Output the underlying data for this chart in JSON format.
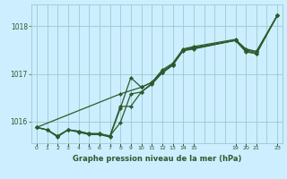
{
  "background_color": "#cceeff",
  "grid_color": "#99cccc",
  "line_color": "#2d5a2d",
  "marker_color": "#2d5a2d",
  "title": "Graphe pression niveau de la mer (hPa)",
  "title_color": "#2d5a2d",
  "xlim": [
    -0.5,
    23.5
  ],
  "ylim": [
    1015.55,
    1018.45
  ],
  "yticks": [
    1016,
    1017,
    1018
  ],
  "xtick_positions": [
    0,
    1,
    2,
    3,
    4,
    5,
    6,
    7,
    8,
    9,
    10,
    11,
    12,
    13,
    14,
    15,
    19,
    20,
    21,
    23
  ],
  "xtick_labels": [
    "0",
    "1",
    "2",
    "3",
    "4",
    "5",
    "6",
    "7",
    "8",
    "9",
    "10",
    "11",
    "12",
    "13",
    "14",
    "15",
    "19",
    "20",
    "21",
    "23"
  ],
  "lines": [
    {
      "x": [
        0,
        1,
        2,
        3,
        4,
        5,
        6,
        7,
        8,
        9,
        10,
        11,
        12,
        13,
        14,
        15,
        19,
        20,
        21,
        23
      ],
      "y": [
        1015.88,
        1015.83,
        1015.68,
        1015.83,
        1015.78,
        1015.73,
        1015.73,
        1015.68,
        1016.28,
        1016.92,
        1016.72,
        1016.82,
        1017.08,
        1017.22,
        1017.52,
        1017.57,
        1017.72,
        1017.52,
        1017.47,
        1018.22
      ]
    },
    {
      "x": [
        0,
        1,
        2,
        3,
        4,
        5,
        6,
        7,
        8,
        9,
        10,
        11,
        12,
        13,
        14,
        15,
        19,
        20,
        21,
        23
      ],
      "y": [
        1015.88,
        1015.83,
        1015.7,
        1015.83,
        1015.8,
        1015.75,
        1015.75,
        1015.7,
        1016.32,
        1016.32,
        1016.62,
        1016.78,
        1017.02,
        1017.18,
        1017.48,
        1017.52,
        1017.7,
        1017.48,
        1017.42,
        1018.22
      ]
    },
    {
      "x": [
        0,
        8,
        10,
        11,
        12,
        13,
        14,
        15,
        19,
        20,
        21,
        23
      ],
      "y": [
        1015.88,
        1016.58,
        1016.72,
        1016.82,
        1017.02,
        1017.18,
        1017.5,
        1017.55,
        1017.7,
        1017.5,
        1017.45,
        1018.22
      ]
    },
    {
      "x": [
        0,
        1,
        2,
        3,
        4,
        5,
        6,
        7,
        8,
        9,
        10,
        11,
        12,
        13,
        14,
        15,
        19,
        20,
        21,
        23
      ],
      "y": [
        1015.88,
        1015.83,
        1015.7,
        1015.83,
        1015.8,
        1015.75,
        1015.75,
        1015.7,
        1015.98,
        1016.58,
        1016.62,
        1016.8,
        1017.05,
        1017.2,
        1017.5,
        1017.53,
        1017.7,
        1017.46,
        1017.42,
        1018.22
      ]
    }
  ]
}
